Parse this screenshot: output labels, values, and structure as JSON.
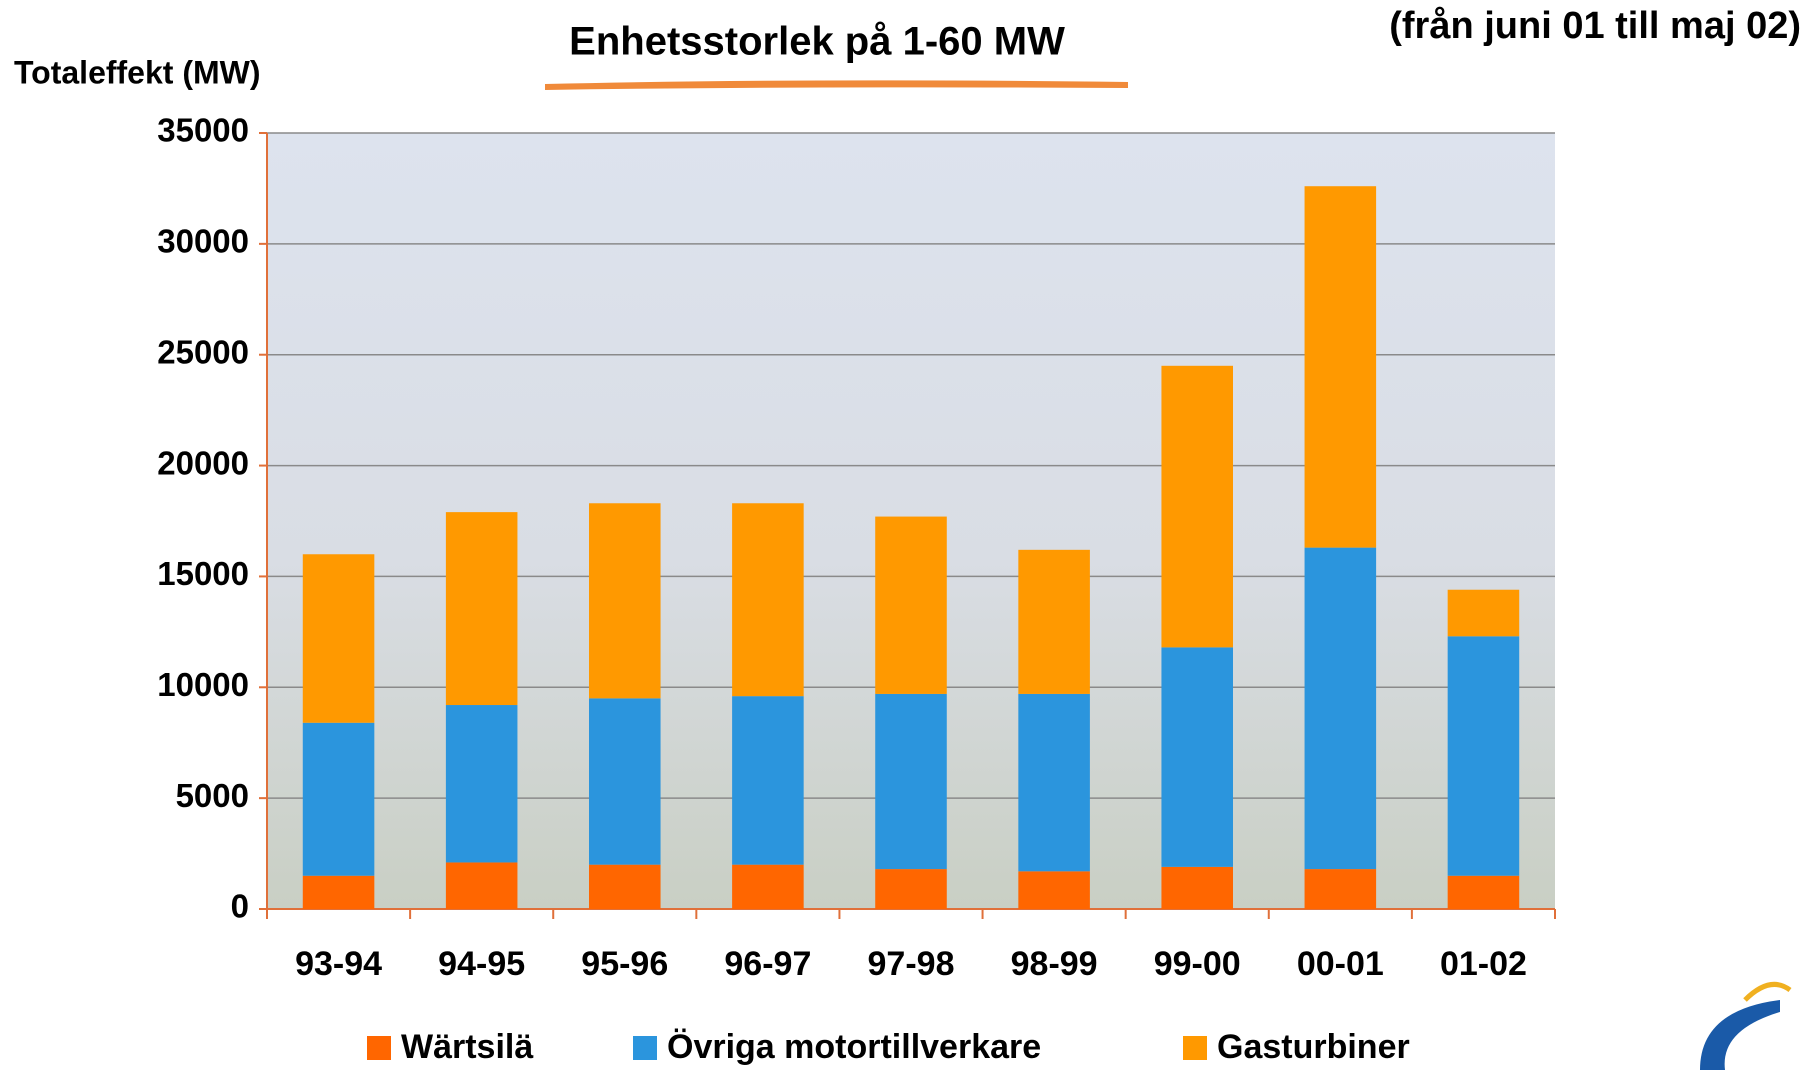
{
  "chart_data": {
    "type": "stacked_bar",
    "title": "Enhetsstorlek på 1-60 MW",
    "subtitle": "(från juni 01 till maj 02)",
    "y_label": "Totaleffekt (MW)",
    "categories": [
      "93-94",
      "94-95",
      "95-96",
      "96-97",
      "97-98",
      "98-99",
      "99-00",
      "00-01",
      "01-02"
    ],
    "series": [
      {
        "name": "Wärtsilä",
        "color": "#ff6600",
        "values": [
          1500,
          2100,
          2000,
          2000,
          1800,
          1700,
          1900,
          1800,
          1500
        ]
      },
      {
        "name": "Övriga motortillverkare",
        "color": "#2b95dd",
        "values": [
          6900,
          7100,
          7500,
          7600,
          7900,
          8000,
          9900,
          14500,
          10800
        ]
      },
      {
        "name": "Gasturbiner",
        "color": "#ff9900",
        "values": [
          7600,
          8700,
          8800,
          8700,
          8000,
          6500,
          12700,
          16300,
          2100
        ]
      }
    ],
    "ylim": [
      0,
      35000
    ],
    "yticks": [
      0,
      5000,
      10000,
      15000,
      20000,
      25000,
      30000,
      35000
    ],
    "grid": true
  }
}
